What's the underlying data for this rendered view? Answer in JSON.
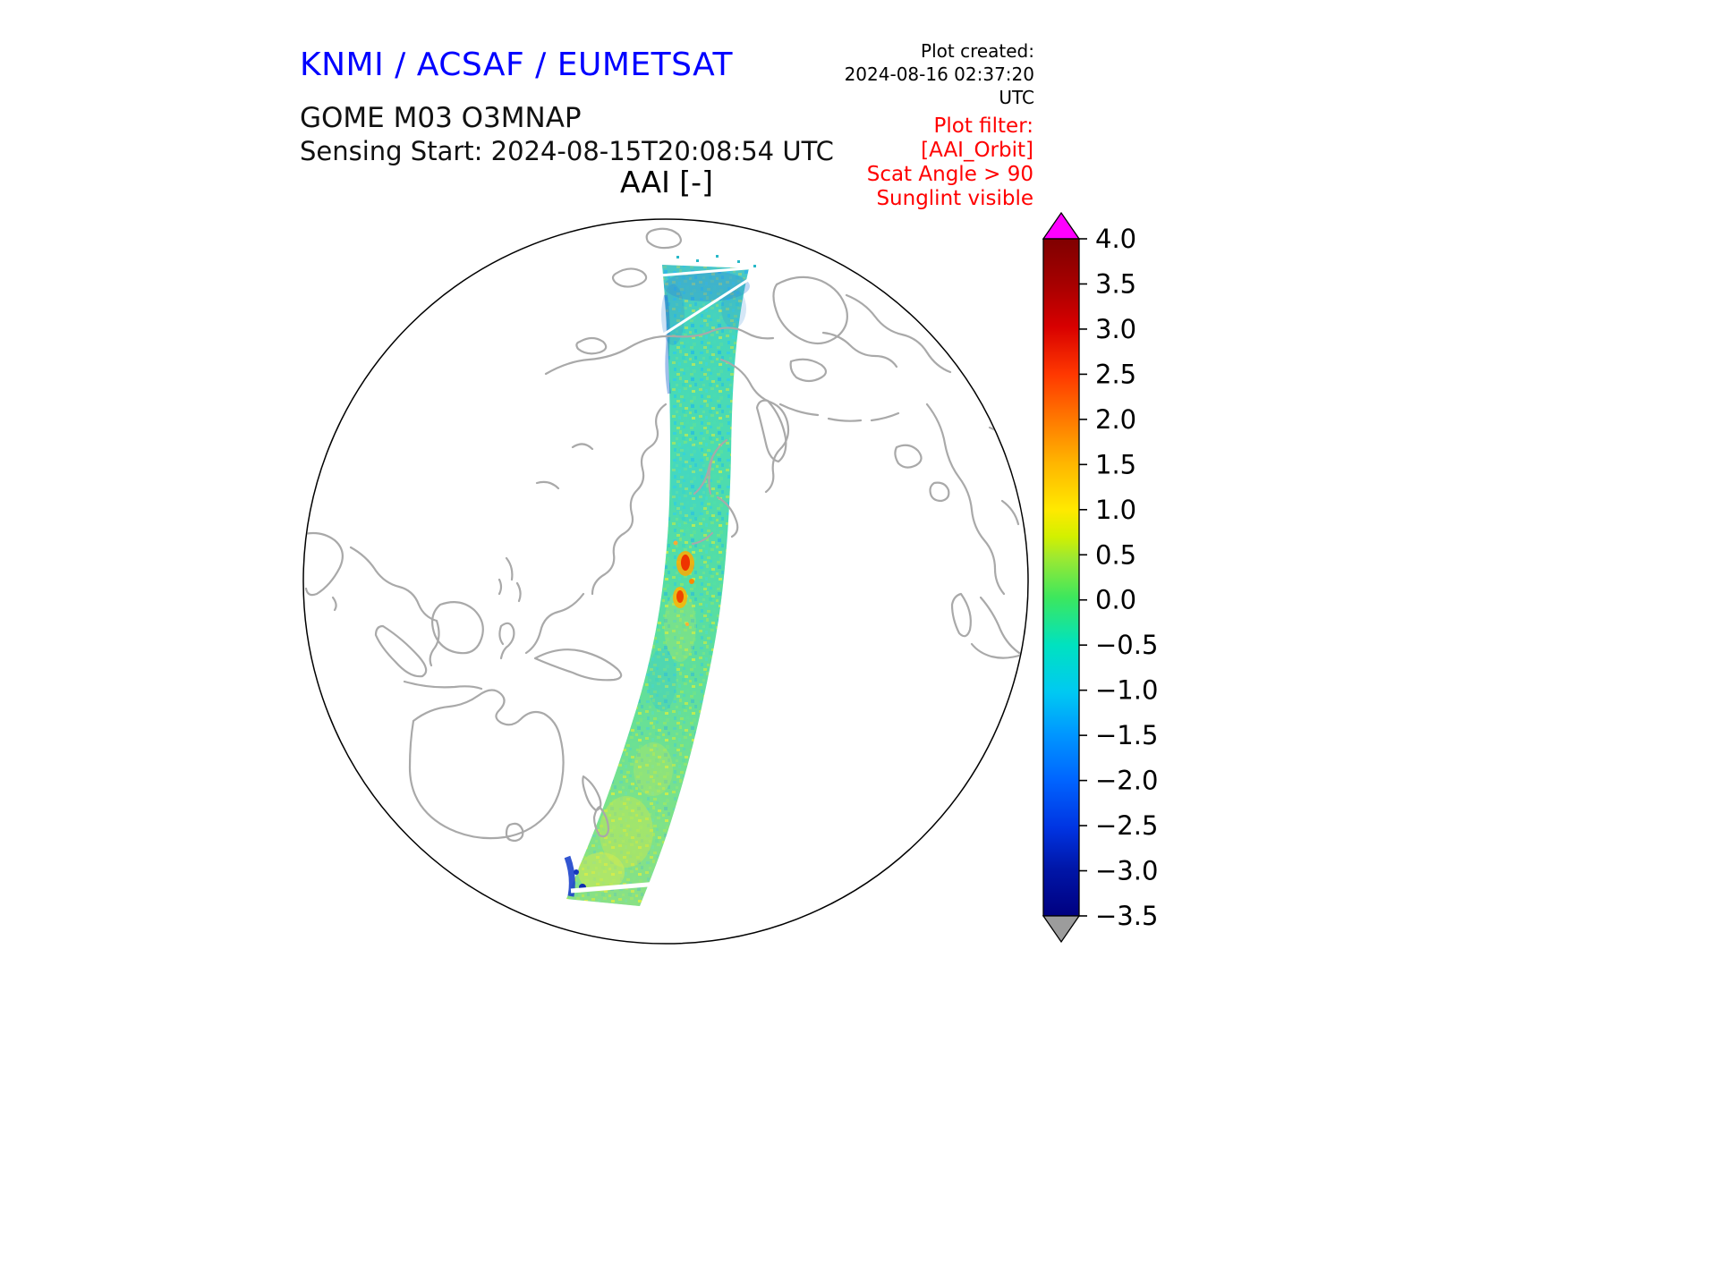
{
  "header": {
    "title": "KNMI / ACSAF / EUMETSAT",
    "plot_created_label": "Plot created:",
    "plot_created_value": "2024-08-16 02:37:20 UTC",
    "product": "GOME M03 O3MNAP",
    "sensing_start": "Sensing Start: 2024-08-15T20:08:54 UTC",
    "plot_title": "AAI [-]",
    "filter": {
      "title": "Plot filter:",
      "lines": [
        "[AAI_Orbit]",
        "Scat Angle > 90",
        "Sunglint visible"
      ]
    }
  },
  "colors": {
    "title_blue": "#0000ff",
    "filter_red": "#ff0000",
    "coastline": "#a9a9a9",
    "globe_outline": "#000000",
    "background": "#ffffff"
  },
  "chart_data": {
    "type": "heatmap",
    "subtype": "orthographic-satellite-swath-map",
    "title": "AAI [-]",
    "instrument": "GOME M03 O3MNAP",
    "sensing_start": "2024-08-15T20:08:54 UTC",
    "projection": "orthographic globe, Pacific / East-Asia / Australia hemisphere, gray coastlines",
    "swath_summary": "Single north-south orbit swath from Arctic to Southern Ocean; AAI speckle mostly between -1.5 and +1.0 (cyan-green-yellow), small aerosol plume reaching about +2.5 to +3 near swath centre, dark blue values about -2 to -3 at swath ends, thin white data-gap streaks near both ends",
    "colorbar": {
      "vmax": 4.0,
      "vmin": -3.5,
      "ticks": [
        4.0,
        3.5,
        3.0,
        2.5,
        2.0,
        1.5,
        1.0,
        0.5,
        0.0,
        -0.5,
        -1.0,
        -1.5,
        -2.0,
        -2.5,
        -3.0,
        -3.5
      ],
      "tick_labels": [
        "4.0",
        "3.5",
        "3.0",
        "2.5",
        "2.0",
        "1.5",
        "1.0",
        "0.5",
        "0.0",
        "−0.5",
        "−1.0",
        "−1.5",
        "−2.0",
        "−2.5",
        "−3.0",
        "−3.5"
      ],
      "over_color": "#ff00ff",
      "under_color": "#9c9c9c",
      "gradient": [
        {
          "pos": "0%",
          "color": "#7f0000"
        },
        {
          "pos": "7%",
          "color": "#a80000"
        },
        {
          "pos": "13%",
          "color": "#d80000"
        },
        {
          "pos": "20%",
          "color": "#ff3800"
        },
        {
          "pos": "27%",
          "color": "#ff7c00"
        },
        {
          "pos": "33%",
          "color": "#ffb400"
        },
        {
          "pos": "40%",
          "color": "#ffe900"
        },
        {
          "pos": "44%",
          "color": "#d2f000"
        },
        {
          "pos": "47%",
          "color": "#9fe930"
        },
        {
          "pos": "53%",
          "color": "#3ce75e"
        },
        {
          "pos": "60%",
          "color": "#00e2c0"
        },
        {
          "pos": "67%",
          "color": "#00c9f2"
        },
        {
          "pos": "73%",
          "color": "#0098ff"
        },
        {
          "pos": "80%",
          "color": "#0064ff"
        },
        {
          "pos": "87%",
          "color": "#0034e2"
        },
        {
          "pos": "93%",
          "color": "#0016a8"
        },
        {
          "pos": "100%",
          "color": "#000080"
        }
      ]
    }
  }
}
